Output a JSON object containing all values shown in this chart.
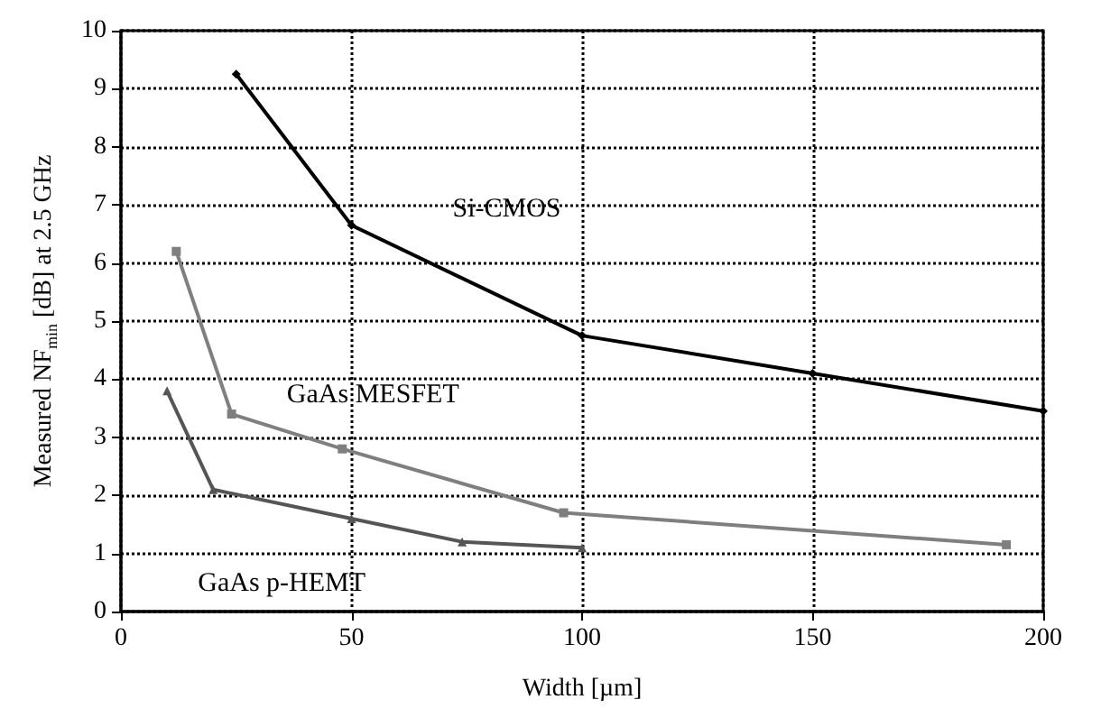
{
  "chart_data": {
    "type": "line",
    "xlabel": "Width [µm]",
    "ylabel": "Measured NF$_{min}$ [dB] at 2.5 GHz",
    "series": [
      {
        "name": "Si-CMOS",
        "color": "#000000",
        "marker": "diamond",
        "x": [
          25,
          50,
          100,
          150,
          200
        ],
        "values": [
          9.25,
          6.65,
          4.75,
          4.1,
          3.45
        ]
      },
      {
        "name": "GaAs MESFET",
        "color": "#7f7f7f",
        "marker": "square",
        "x": [
          12,
          24,
          48,
          96,
          192
        ],
        "values": [
          6.2,
          3.4,
          2.8,
          1.7,
          1.15
        ]
      },
      {
        "name": "GaAs p-HEMT",
        "color": "#555555",
        "marker": "triangle",
        "x": [
          10,
          20,
          50,
          74,
          100
        ],
        "values": [
          3.8,
          2.1,
          1.6,
          1.2,
          1.1
        ]
      }
    ],
    "xlim": [
      0,
      200
    ],
    "xticks": [
      0,
      50,
      100,
      150,
      200
    ],
    "ylim": [
      0,
      10
    ],
    "yticks": [
      0,
      1,
      2,
      3,
      4,
      5,
      6,
      7,
      8,
      9,
      10
    ],
    "grid": true,
    "legend": false,
    "line_style": "solid"
  }
}
